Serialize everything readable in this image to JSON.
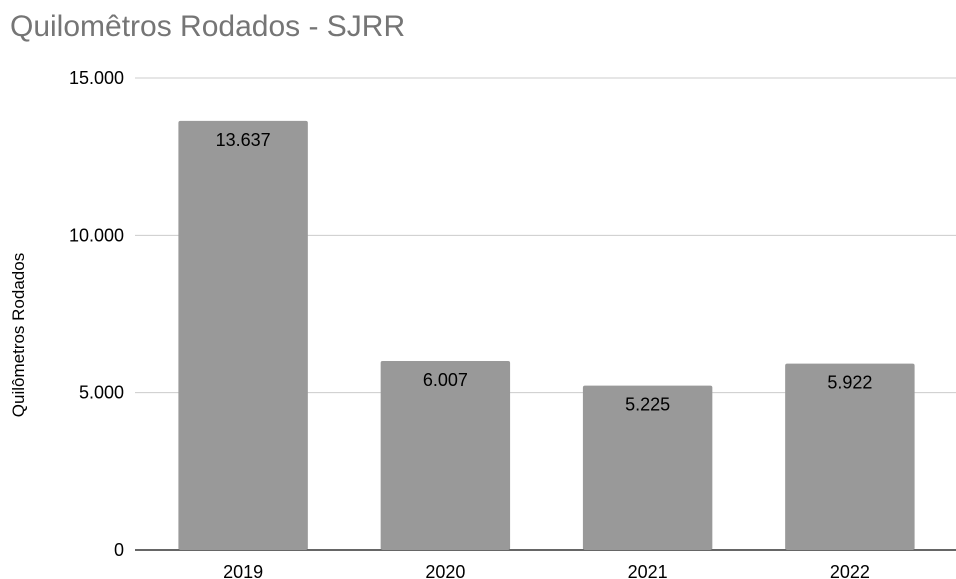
{
  "chart_data": {
    "type": "bar",
    "title": "Quilomêtros Rodados - SJRR",
    "xlabel": "",
    "ylabel": "Quilômetros Rodados",
    "categories": [
      "2019",
      "2020",
      "2021",
      "2022"
    ],
    "values": [
      13637,
      6007,
      5225,
      5922
    ],
    "value_labels": [
      "13.637",
      "6.007",
      "5.225",
      "5.922"
    ],
    "ylim": [
      0,
      15000
    ],
    "yticks": [
      0,
      5000,
      10000,
      15000
    ],
    "ytick_labels": [
      "0",
      "5.000",
      "10.000",
      "15.000"
    ],
    "grid": true,
    "legend": "none",
    "bar_color": "#999999",
    "grid_color": "#cccccc",
    "title_color": "#757575"
  }
}
